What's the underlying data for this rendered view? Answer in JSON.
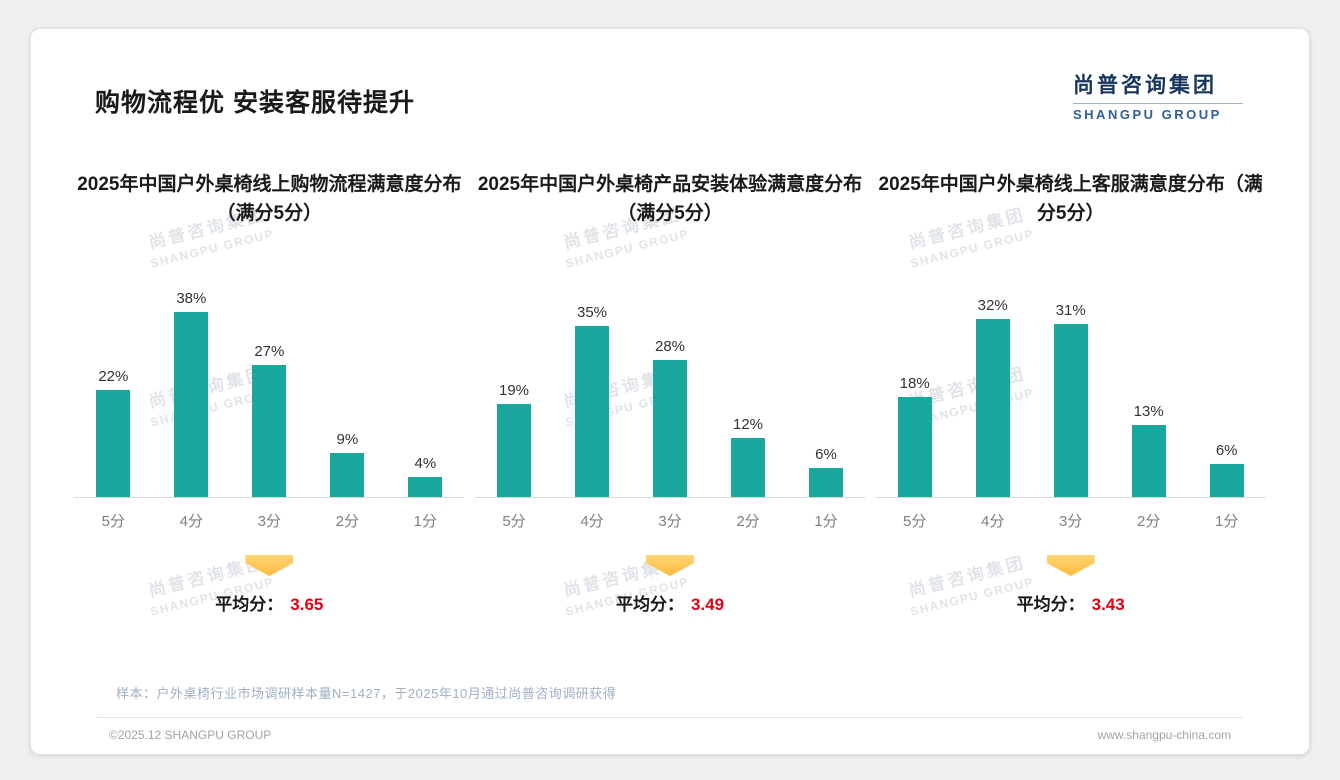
{
  "page": {
    "title": "购物流程优 安装客服待提升",
    "logo": {
      "cn": "尚普咨询集团",
      "en": "SHANGPU GROUP"
    },
    "watermark": {
      "cn": "尚普咨询集团",
      "en": "SHANGPU GROUP"
    },
    "note": "样本：户外桌椅行业市场调研样本量N=1427，于2025年10月通过尚普咨询调研获得",
    "footer_left": "©2025.12 SHANGPU GROUP",
    "footer_right": "www.shangpu-china.com"
  },
  "colors": {
    "bar_teal": "#19a79e",
    "average_red": "#e60012",
    "logo_blue": "#17365d",
    "arrow_yellow": "#ffc44a"
  },
  "chart_data": [
    {
      "type": "bar",
      "title": "2025年中国户外桌椅线上购物流程满意度分布（满分5分）",
      "categories": [
        "5分",
        "4分",
        "3分",
        "2分",
        "1分"
      ],
      "values": [
        22,
        38,
        27,
        9,
        4
      ],
      "value_suffix": "%",
      "ylim": [
        0,
        40
      ],
      "grid": false,
      "legend": "none",
      "average_label": "平均分：",
      "average": "3.65"
    },
    {
      "type": "bar",
      "title": "2025年中国户外桌椅产品安装体验满意度分布（满分5分）",
      "categories": [
        "5分",
        "4分",
        "3分",
        "2分",
        "1分"
      ],
      "values": [
        19,
        35,
        28,
        12,
        6
      ],
      "value_suffix": "%",
      "ylim": [
        0,
        40
      ],
      "grid": false,
      "legend": "none",
      "average_label": "平均分：",
      "average": "3.49"
    },
    {
      "type": "bar",
      "title": "2025年中国户外桌椅线上客服满意度分布（满分5分）",
      "categories": [
        "5分",
        "4分",
        "3分",
        "2分",
        "1分"
      ],
      "values": [
        18,
        32,
        31,
        13,
        6
      ],
      "value_suffix": "%",
      "ylim": [
        0,
        35
      ],
      "grid": false,
      "legend": "none",
      "average_label": "平均分：",
      "average": "3.43"
    }
  ]
}
